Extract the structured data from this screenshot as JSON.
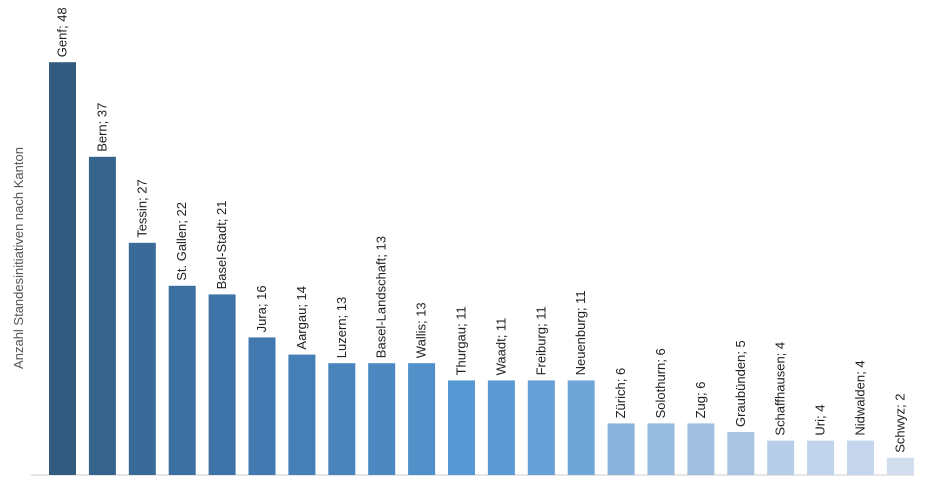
{
  "chart_data": {
    "type": "bar",
    "ylabel": "Anzahl Standesinitiativen nach Kanton",
    "categories": [
      "Genf",
      "Bern",
      "Tessin",
      "St. Gallen",
      "Basel-Stadt",
      "Jura",
      "Aargau",
      "Luzern",
      "Basel-Landschaft",
      "Wallis",
      "Thurgau",
      "Waadt",
      "Freiburg",
      "Neuenburg",
      "Zürich",
      "Solothurn",
      "Zug",
      "Graubünden",
      "Schaffhausen",
      "Uri",
      "Nidwalden",
      "Schwyz"
    ],
    "values": [
      48,
      37,
      27,
      22,
      21,
      16,
      14,
      13,
      13,
      13,
      11,
      11,
      11,
      11,
      6,
      6,
      6,
      5,
      4,
      4,
      4,
      2
    ],
    "data_labels": [
      "Genf; 48",
      "Bern; 37",
      "Tessin; 27",
      "St. Gallen; 22",
      "Basel-Stadt; 21",
      "Jura; 16",
      "Aargau; 14",
      "Luzern; 13",
      "Basel-Landschaft; 13",
      "Wallis; 13",
      "Thurgau; 11",
      "Waadt; 11",
      "Freiburg; 11",
      "Neuenburg; 11",
      "Zürich; 6",
      "Solothurn; 6",
      "Zug; 6",
      "Graubünden; 5",
      "Schaffhausen; 4",
      "Uri; 4",
      "Nidwalden; 4",
      "Schwyz; 2"
    ],
    "colors": [
      "#335b7f",
      "#36638c",
      "#3a6b98",
      "#3c70a1",
      "#3d73a6",
      "#4279b1",
      "#467fb8",
      "#4a84bd",
      "#4d88c1",
      "#5190c9",
      "#5799d5",
      "#5b9ad3",
      "#669fd5",
      "#70a5d7",
      "#8cb3dc",
      "#97badf",
      "#a0bfe1",
      "#aac5e4",
      "#b7cde8",
      "#c0d3eb",
      "#c6d6ec",
      "#d2ddee"
    ],
    "ylim": [
      0,
      50
    ],
    "grid": false,
    "legend": "none"
  }
}
